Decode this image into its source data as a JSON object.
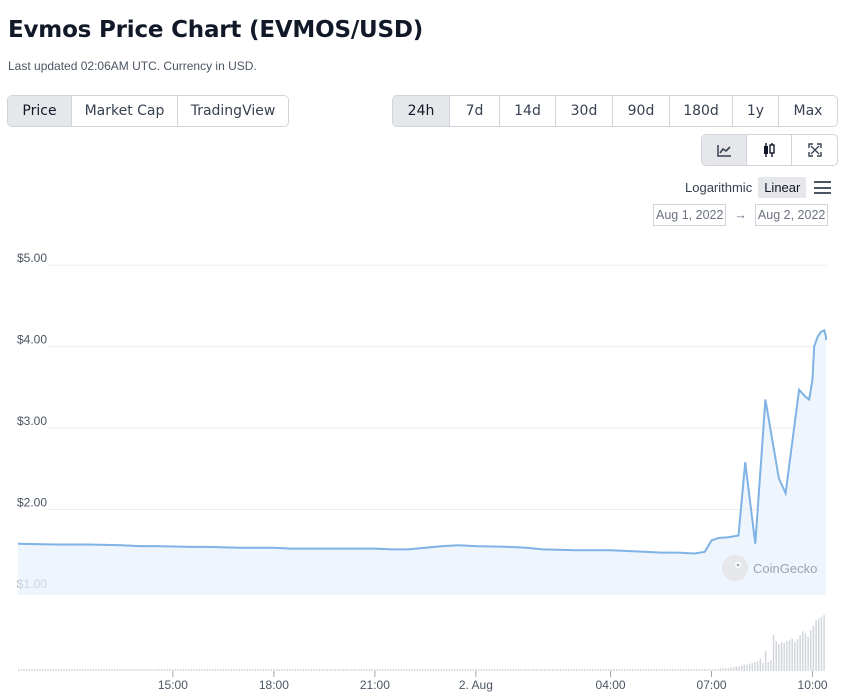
{
  "header": {
    "title": "Evmos Price Chart (EVMOS/USD)",
    "subtitle": "Last updated 02:06AM UTC. Currency in USD."
  },
  "type_tabs": [
    {
      "label": "Price",
      "active": true
    },
    {
      "label": "Market Cap",
      "active": false
    },
    {
      "label": "TradingView",
      "active": false
    }
  ],
  "range_tabs": [
    {
      "label": "24h",
      "active": true
    },
    {
      "label": "7d",
      "active": false
    },
    {
      "label": "14d",
      "active": false
    },
    {
      "label": "30d",
      "active": false
    },
    {
      "label": "90d",
      "active": false
    },
    {
      "label": "180d",
      "active": false
    },
    {
      "label": "1y",
      "active": false
    },
    {
      "label": "Max",
      "active": false
    }
  ],
  "view_tabs": [
    {
      "icon": "line-chart-icon",
      "active": true
    },
    {
      "icon": "candlestick-icon",
      "active": false
    },
    {
      "icon": "fullscreen-icon",
      "active": false
    }
  ],
  "scale": {
    "options": [
      "Logarithmic",
      "Linear"
    ],
    "active": "Linear"
  },
  "date_range": {
    "from": "Aug 1, 2022",
    "arrow": "→",
    "to": "Aug 2, 2022"
  },
  "watermark": "CoinGecko",
  "colors": {
    "line": "#7fb2e5",
    "area": "#eaf3fc",
    "volume": "#d1d5db",
    "grid": "#ececec"
  },
  "chart_data": {
    "type": "line",
    "y_ticks": [
      "$5.00",
      "$4.00",
      "$3.00",
      "$2.00",
      "$1.00"
    ],
    "y_tick_values": [
      5,
      4,
      3,
      2,
      1
    ],
    "ylim": [
      0.95,
      5.1
    ],
    "x_ticks": [
      {
        "label": "15:00",
        "t": 15
      },
      {
        "label": "18:00",
        "t": 18
      },
      {
        "label": "21:00",
        "t": 21
      },
      {
        "label": "2. Aug",
        "t": 24
      },
      {
        "label": "04:00",
        "t": 28
      },
      {
        "label": "07:00",
        "t": 31
      },
      {
        "label": "10:00",
        "t": 34
      }
    ],
    "xlim": [
      10.4,
      34.4
    ],
    "series": [
      {
        "x": [
          10.4,
          11.5,
          12.5,
          13.5,
          14.0,
          14.5,
          15.5,
          16.0,
          17.0,
          18.0,
          18.5,
          19.0,
          20.0,
          21.0,
          21.5,
          22.0,
          23.0,
          23.5,
          24.0,
          25.0,
          25.5,
          26.0,
          27.0,
          28.0,
          28.5,
          29.0,
          29.5,
          30.0,
          30.5,
          30.8,
          31.0,
          31.2,
          31.5,
          31.8,
          32.0,
          32.3,
          32.6,
          33.0,
          33.2,
          33.6,
          33.8,
          33.9,
          34.0,
          34.05,
          34.15,
          34.25,
          34.35,
          34.4,
          34.4
        ],
        "values": [
          1.58,
          1.57,
          1.57,
          1.56,
          1.55,
          1.55,
          1.54,
          1.54,
          1.53,
          1.53,
          1.52,
          1.52,
          1.52,
          1.52,
          1.51,
          1.51,
          1.55,
          1.56,
          1.55,
          1.54,
          1.53,
          1.51,
          1.5,
          1.5,
          1.49,
          1.48,
          1.47,
          1.47,
          1.46,
          1.48,
          1.62,
          1.65,
          1.66,
          1.68,
          2.58,
          1.58,
          3.35,
          2.38,
          2.2,
          3.47,
          3.38,
          3.35,
          3.6,
          4.0,
          4.12,
          4.18,
          4.2,
          4.12,
          4.08
        ],
        "volume_bars": [
          2,
          2,
          2,
          2,
          2,
          2,
          2,
          2,
          2,
          2,
          2,
          2,
          2,
          2,
          2,
          2,
          2,
          2,
          2,
          2,
          2,
          2,
          2,
          2,
          2,
          2,
          2,
          2,
          2,
          2,
          2,
          2,
          2,
          2,
          2,
          2,
          2,
          2,
          2,
          2,
          2,
          2,
          2,
          2,
          2,
          2,
          2,
          2,
          2,
          2,
          2,
          2,
          2,
          2,
          2,
          2,
          2,
          2,
          2,
          2,
          2,
          2,
          2,
          2,
          2,
          2,
          2,
          2,
          2,
          2,
          2,
          2,
          2,
          2,
          2,
          2,
          2,
          2,
          2,
          2,
          2,
          2,
          2,
          2,
          2,
          2,
          2,
          2,
          2,
          2,
          2,
          2,
          2,
          2,
          2,
          2,
          2,
          2,
          2,
          2,
          2,
          2,
          2,
          2,
          2,
          2,
          2,
          2,
          2,
          2,
          2,
          2,
          2,
          2,
          2,
          2,
          2,
          2,
          2,
          2,
          2,
          2,
          2,
          2,
          2,
          2,
          2,
          2,
          2,
          2,
          2,
          2,
          2,
          2,
          2,
          2,
          2,
          2,
          2,
          2,
          2,
          2,
          2,
          2,
          2,
          2,
          2,
          2,
          2,
          2,
          2,
          2,
          2,
          2,
          2,
          2,
          2,
          2,
          2,
          2,
          2,
          2,
          2,
          2,
          2,
          2,
          2,
          2,
          2,
          2,
          2,
          2,
          2,
          2,
          2,
          2,
          2,
          2,
          2,
          2,
          2,
          2,
          2,
          2,
          2,
          2,
          2,
          2,
          2,
          2,
          2,
          2,
          2,
          2,
          2,
          2,
          2,
          2,
          2,
          2,
          2,
          2,
          2,
          2,
          2,
          2,
          2,
          2,
          2,
          2,
          2,
          2,
          2,
          2,
          2,
          2,
          2,
          2,
          2,
          2,
          2,
          2,
          2,
          2,
          2,
          2,
          2,
          2,
          2,
          2,
          2,
          2,
          2,
          2,
          2,
          2,
          2,
          2,
          2,
          2,
          2,
          2,
          2,
          2,
          2,
          2,
          2,
          2,
          2,
          2,
          2,
          2,
          2,
          2,
          2,
          2,
          2,
          2,
          2,
          2,
          2,
          2,
          2,
          2,
          3,
          3,
          3,
          3,
          4,
          4,
          5,
          5,
          6,
          7,
          7,
          8,
          9,
          10,
          11,
          14,
          9,
          22,
          10,
          12,
          40,
          33,
          30,
          32,
          31,
          33,
          34,
          36,
          32,
          35,
          40,
          44,
          42,
          38,
          45,
          50,
          56,
          58,
          60,
          62
        ]
      }
    ]
  }
}
